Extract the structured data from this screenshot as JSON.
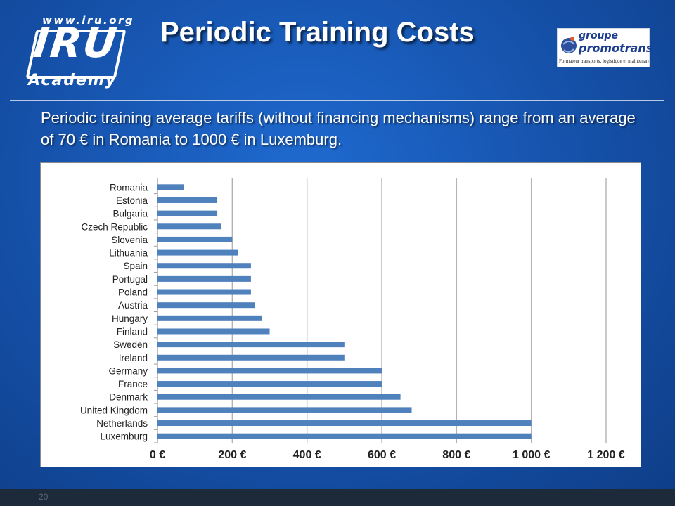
{
  "header": {
    "logo": {
      "url": "www.iru.org",
      "name": "IRU",
      "sub": "Academy"
    },
    "title": "Periodic Training Costs",
    "partner_logo": {
      "line1": "groupe",
      "line2": "promotrans",
      "tagline": "Formateur transports, logistique et maintenance"
    }
  },
  "subtitle": "Periodic training average tariffs (without financing mechanisms) range from an average of 70 € in Romania to 1000 € in Luxemburg.",
  "footer": {
    "page_number": "20"
  },
  "colors": {
    "background": "#1550a8",
    "bar": "#4f81bd",
    "grid": "#b3b3b3",
    "text": "#222222"
  },
  "chart_data": {
    "type": "bar",
    "orientation": "horizontal",
    "categories": [
      "Romania",
      "Estonia",
      "Bulgaria",
      "Czech Republic",
      "Slovenia",
      "Lithuania",
      "Spain",
      "Portugal",
      "Poland",
      "Austria",
      "Hungary",
      "Finland",
      "Sweden",
      "Ireland",
      "Germany",
      "France",
      "Denmark",
      "United Kingdom",
      "Netherlands",
      "Luxemburg"
    ],
    "values": [
      70,
      160,
      160,
      170,
      200,
      215,
      250,
      250,
      250,
      260,
      280,
      300,
      500,
      500,
      600,
      600,
      650,
      680,
      1000,
      1000
    ],
    "xlim": [
      0,
      1200
    ],
    "xticks": [
      0,
      200,
      400,
      600,
      800,
      1000,
      1200
    ],
    "xtick_labels": [
      "0 €",
      "200 €",
      "400 €",
      "600 €",
      "800 €",
      "1 000 €",
      "1 200 €"
    ],
    "grid": "vertical",
    "legend": "none"
  }
}
